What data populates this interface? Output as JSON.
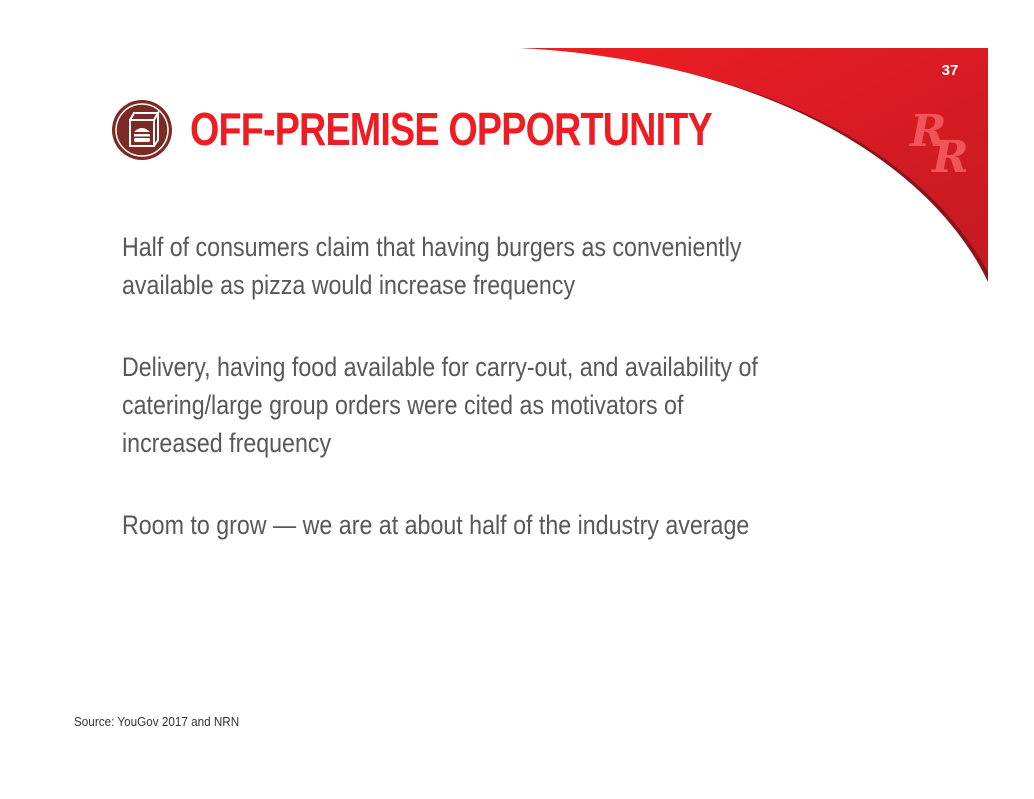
{
  "slide": {
    "page_number": "37",
    "title": "OFF-PREMISE OPPORTUNITY",
    "title_icon": "takeout-bag-burger-icon",
    "logo": "red-robin-rr-logo",
    "bullets": [
      "Half of consumers claim that having burgers as conveniently available as pizza would increase frequency",
      "Delivery, having food available for carry-out, and availability of catering/large group orders were cited as motivators of increased frequency",
      "Room to grow — we are at about half of the industry average"
    ],
    "source": "Source: YouGov 2017 and NRN"
  },
  "colors": {
    "accent_red": "#ee1d23",
    "dark_red": "#a01520",
    "icon_brown": "#7b2a24",
    "body_text": "#58585a"
  }
}
